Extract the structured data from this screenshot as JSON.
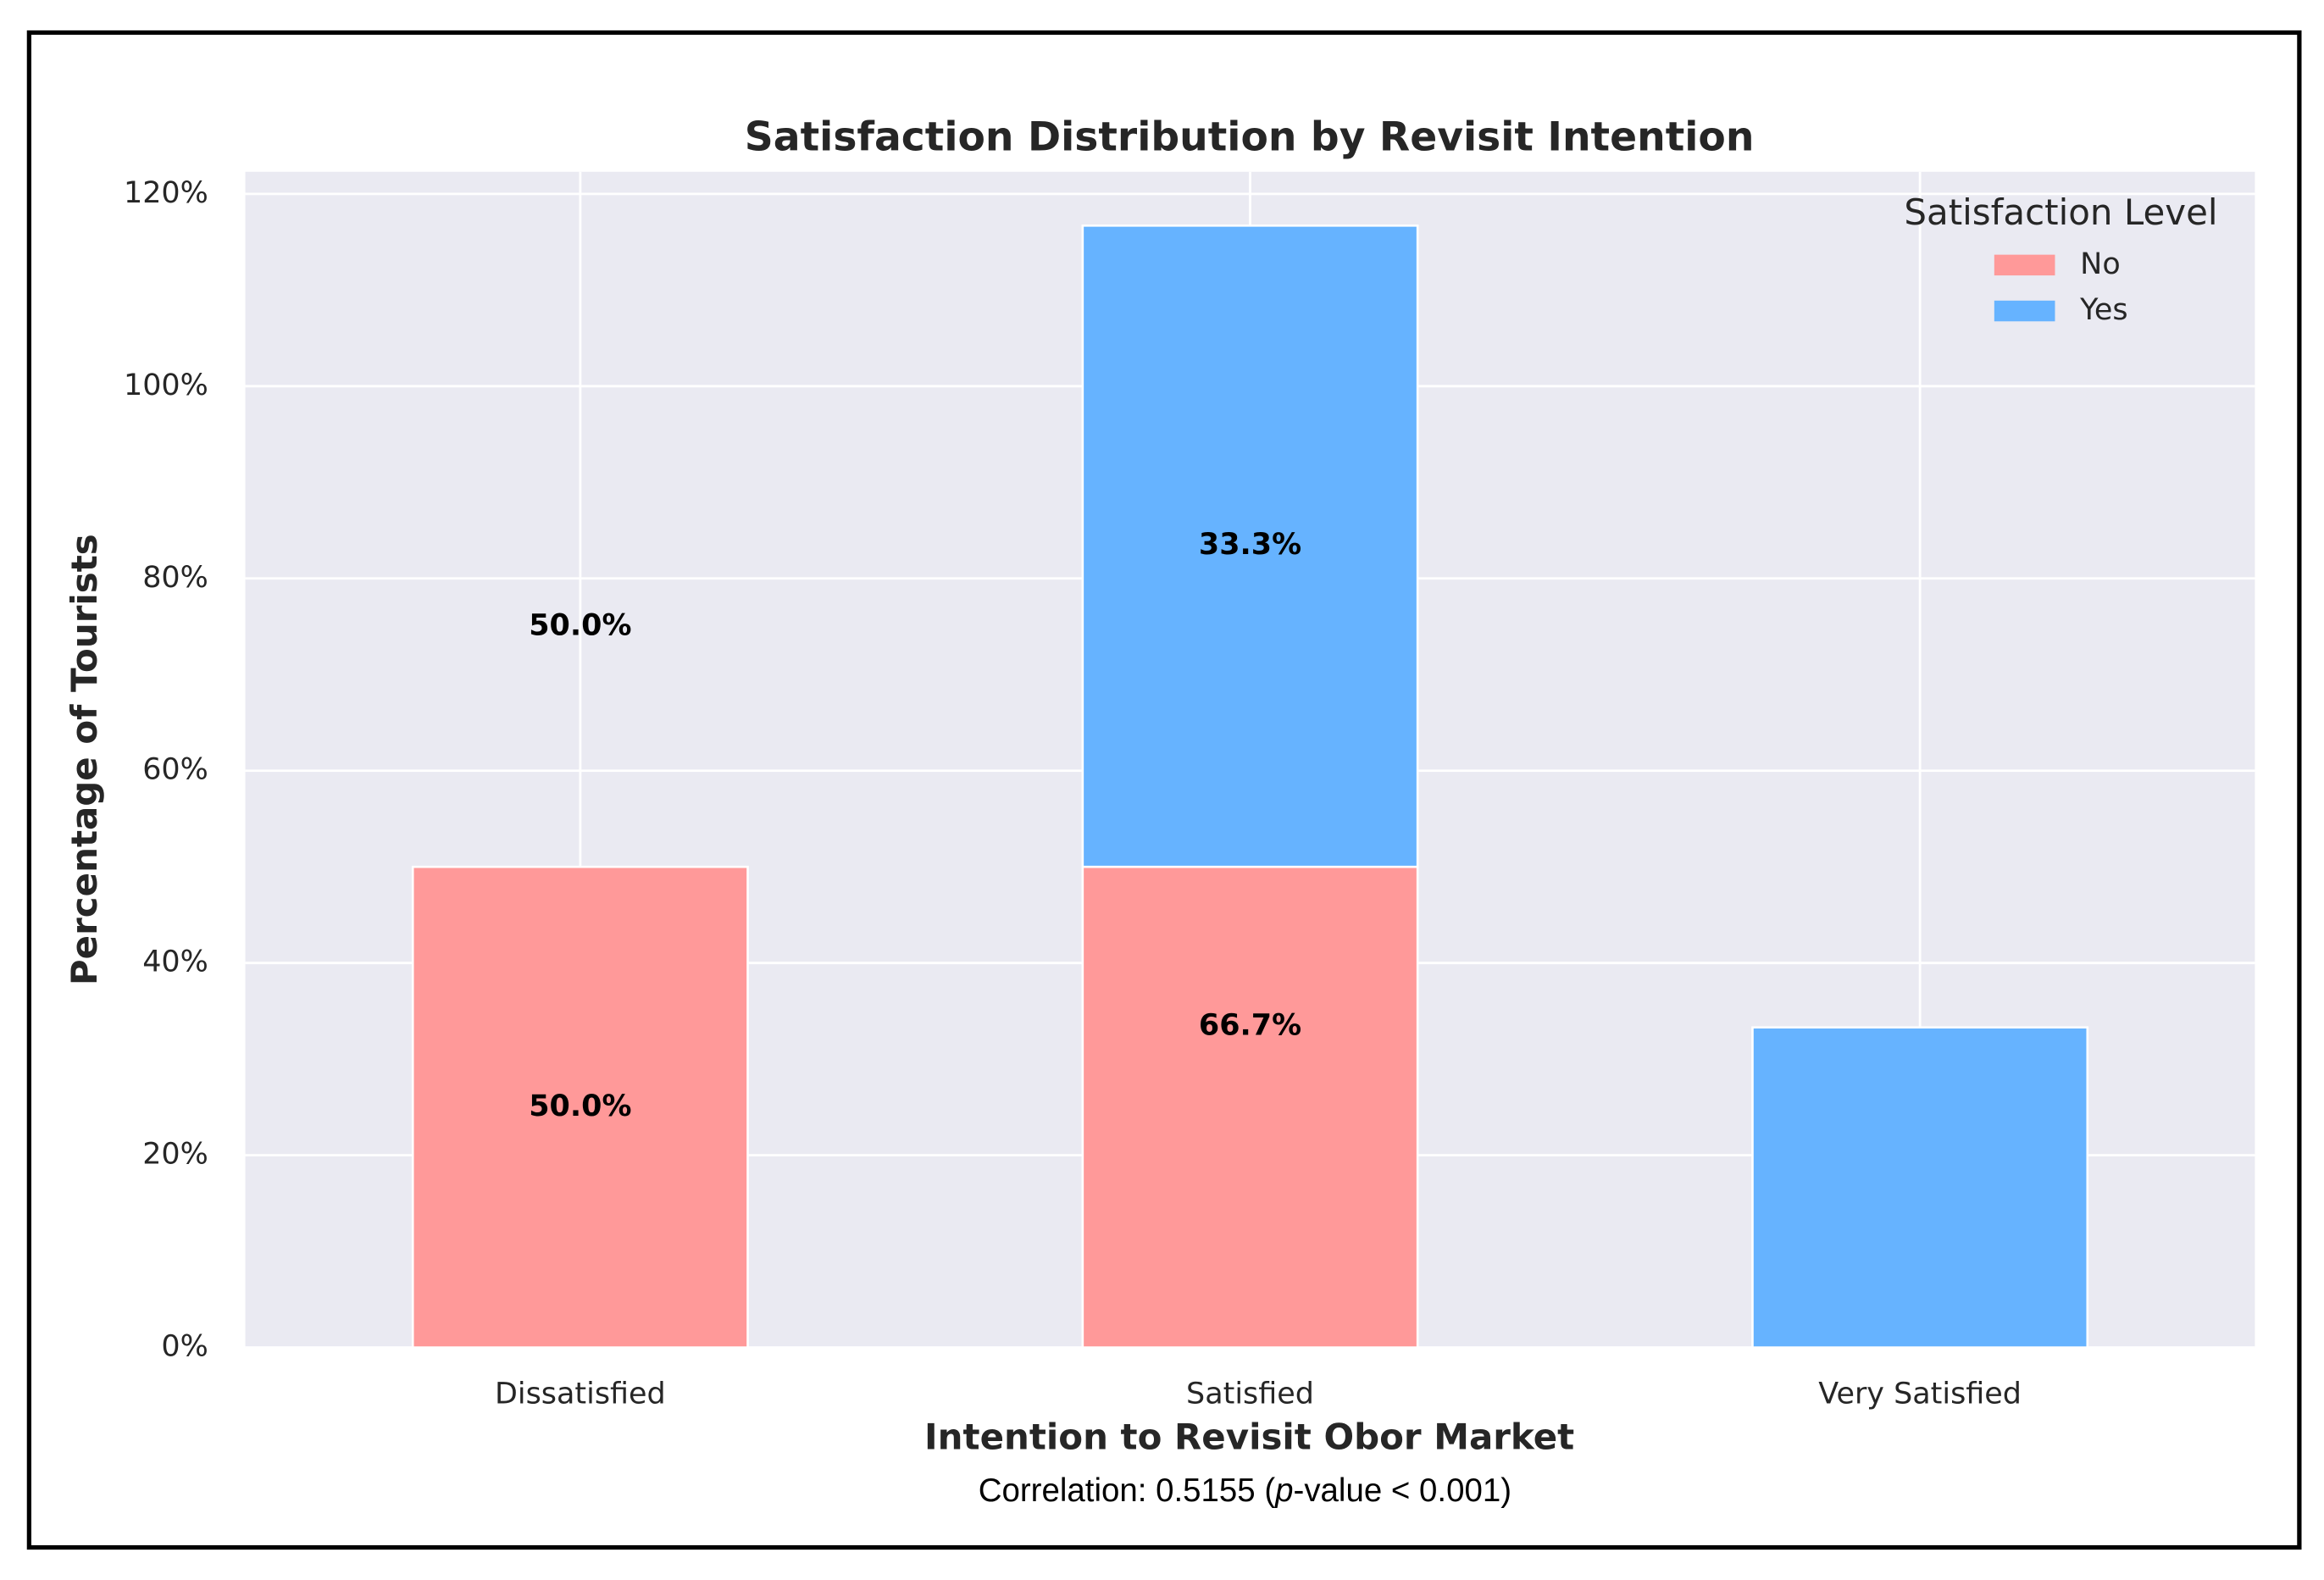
{
  "chart_data": {
    "type": "stacked_bar",
    "title": "Satisfaction Distribution by Revisit Intention",
    "x_label": "Intention to Revisit Obor Market",
    "y_label": "Percentage of Tourists",
    "caption": [
      "Correlation: 0.5155 (",
      "p",
      "-value < 0.001)"
    ],
    "categories": [
      "Dissatisfied",
      "Satisfied",
      "Very Satisfied"
    ],
    "series": [
      {
        "name": "No",
        "color": "#ff9999",
        "values": [
          50,
          50,
          0
        ]
      },
      {
        "name": "Yes",
        "color": "#66b3ff",
        "values": [
          0,
          66.7,
          33.3
        ]
      }
    ],
    "annotations": [
      {
        "text": "50.0%",
        "category": 0,
        "y": 25
      },
      {
        "text": "50.0%",
        "category": 0,
        "y": 75
      },
      {
        "text": "66.7%",
        "category": 1,
        "y": 33.4
      },
      {
        "text": "33.3%",
        "category": 1,
        "y": 83.4
      }
    ],
    "ylim": [
      0,
      122.3
    ],
    "yticks": [
      {
        "value": 0,
        "label": "0%"
      },
      {
        "value": 20,
        "label": "20%"
      },
      {
        "value": 40,
        "label": "40%"
      },
      {
        "value": 60,
        "label": "60%"
      },
      {
        "value": 80,
        "label": "80%"
      },
      {
        "value": 100,
        "label": "100%"
      },
      {
        "value": 120,
        "label": "120%"
      }
    ],
    "grid": true,
    "background": "#eaeaf2",
    "legend": {
      "title": "Satisfaction Level",
      "position": "upper right"
    }
  }
}
